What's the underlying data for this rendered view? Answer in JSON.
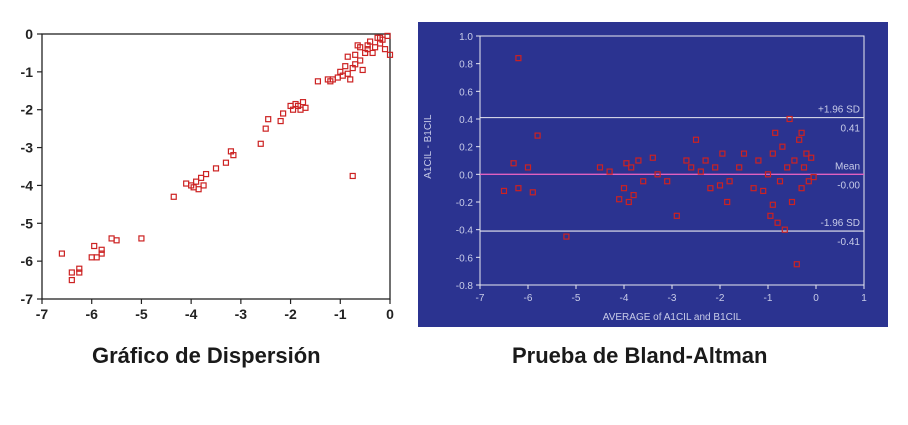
{
  "captions": {
    "left": "Gráfico de Dispersión",
    "right": "Prueba de Bland-Altman"
  },
  "colors": {
    "marker": "#cc2222",
    "ba_background": "#2b3390",
    "ba_lines": "#e8e8f0",
    "ba_text": "#c8cce8"
  },
  "chart_data": [
    {
      "type": "scatter",
      "title": "Gráfico de Dispersión",
      "xlabel": "",
      "ylabel": "",
      "xlim": [
        -7,
        0
      ],
      "ylim": [
        -7,
        0
      ],
      "x_ticks": [
        -7,
        -6,
        -5,
        -4,
        -3,
        -2,
        -1,
        0
      ],
      "y_ticks": [
        0,
        -1,
        -2,
        -3,
        -4,
        -5,
        -6,
        -7
      ],
      "grid": false,
      "points": [
        [
          -6.6,
          -5.8
        ],
        [
          -6.4,
          -6.3
        ],
        [
          -6.4,
          -6.5
        ],
        [
          -6.25,
          -6.2
        ],
        [
          -6.25,
          -6.3
        ],
        [
          -6.0,
          -5.9
        ],
        [
          -5.95,
          -5.6
        ],
        [
          -5.9,
          -5.9
        ],
        [
          -5.8,
          -5.8
        ],
        [
          -5.8,
          -5.7
        ],
        [
          -5.6,
          -5.4
        ],
        [
          -5.5,
          -5.45
        ],
        [
          -5.0,
          -5.4
        ],
        [
          -4.35,
          -4.3
        ],
        [
          -4.1,
          -3.95
        ],
        [
          -4.0,
          -4.0
        ],
        [
          -3.95,
          -4.05
        ],
        [
          -3.9,
          -3.9
        ],
        [
          -3.85,
          -4.1
        ],
        [
          -3.8,
          -3.8
        ],
        [
          -3.75,
          -4.0
        ],
        [
          -3.7,
          -3.7
        ],
        [
          -3.5,
          -3.55
        ],
        [
          -3.3,
          -3.4
        ],
        [
          -3.2,
          -3.1
        ],
        [
          -3.15,
          -3.2
        ],
        [
          -2.6,
          -2.9
        ],
        [
          -2.5,
          -2.5
        ],
        [
          -2.45,
          -2.25
        ],
        [
          -2.2,
          -2.3
        ],
        [
          -2.15,
          -2.1
        ],
        [
          -2.0,
          -1.9
        ],
        [
          -1.95,
          -2.0
        ],
        [
          -1.9,
          -1.85
        ],
        [
          -1.85,
          -1.9
        ],
        [
          -1.8,
          -2.0
        ],
        [
          -1.75,
          -1.8
        ],
        [
          -1.7,
          -1.95
        ],
        [
          -1.45,
          -1.25
        ],
        [
          -1.25,
          -1.2
        ],
        [
          -1.2,
          -1.25
        ],
        [
          -1.15,
          -1.2
        ],
        [
          -1.05,
          -1.15
        ],
        [
          -1.0,
          -1.0
        ],
        [
          -0.95,
          -1.1
        ],
        [
          -0.9,
          -0.85
        ],
        [
          -0.85,
          -0.6
        ],
        [
          -0.8,
          -1.2
        ],
        [
          -0.75,
          -0.9
        ],
        [
          -0.7,
          -0.55
        ],
        [
          -0.7,
          -0.8
        ],
        [
          -0.65,
          -0.3
        ],
        [
          -0.6,
          -0.7
        ],
        [
          -0.55,
          -0.95
        ],
        [
          -0.5,
          -0.5
        ],
        [
          -0.45,
          -0.4
        ],
        [
          -0.4,
          -0.2
        ],
        [
          -0.35,
          -0.5
        ],
        [
          -0.3,
          -0.35
        ],
        [
          -0.25,
          -0.1
        ],
        [
          -0.2,
          -0.25
        ],
        [
          -0.15,
          -0.15
        ],
        [
          -0.1,
          -0.4
        ],
        [
          -0.05,
          -0.05
        ],
        [
          0.0,
          -0.55
        ],
        [
          -0.75,
          -3.75
        ],
        [
          -0.85,
          -1.05
        ],
        [
          -0.45,
          -0.3
        ],
        [
          -0.2,
          -0.1
        ],
        [
          -0.6,
          -0.35
        ]
      ]
    },
    {
      "type": "scatter",
      "title": "Prueba de Bland-Altman",
      "xlabel": "AVERAGE of A1CIL and B1CIL",
      "ylabel": "A1CIL - B1CIL",
      "xlim": [
        -7,
        1
      ],
      "ylim": [
        -0.8,
        1.0
      ],
      "x_ticks": [
        -7,
        -6,
        -5,
        -4,
        -3,
        -2,
        -1,
        0,
        1
      ],
      "y_ticks": [
        1.0,
        0.8,
        0.6,
        0.4,
        0.2,
        0.0,
        -0.2,
        -0.4,
        -0.6,
        -0.8
      ],
      "y_tick_labels": [
        "1.0",
        "0.8",
        "0.6",
        "0.4",
        "0.2",
        "0.0",
        "-0.2",
        "-0.4",
        "-0.6",
        "-0.8"
      ],
      "grid": false,
      "reference_lines": [
        {
          "label": "+1.96 SD",
          "value_label": "0.41",
          "y": 0.41
        },
        {
          "label": "Mean",
          "value_label": "-0.00",
          "y": 0.0
        },
        {
          "label": "-1.96 SD",
          "value_label": "-0.41",
          "y": -0.41
        }
      ],
      "points": [
        [
          -6.2,
          0.84
        ],
        [
          -6.5,
          -0.12
        ],
        [
          -6.3,
          0.08
        ],
        [
          -6.2,
          -0.1
        ],
        [
          -6.0,
          0.05
        ],
        [
          -5.9,
          -0.13
        ],
        [
          -5.8,
          0.28
        ],
        [
          -5.2,
          -0.45
        ],
        [
          -4.0,
          -0.1
        ],
        [
          -3.9,
          -0.2
        ],
        [
          -3.85,
          0.05
        ],
        [
          -3.8,
          -0.15
        ],
        [
          -3.7,
          0.1
        ],
        [
          -3.6,
          -0.05
        ],
        [
          -3.4,
          0.12
        ],
        [
          -3.3,
          0.0
        ],
        [
          -3.1,
          -0.05
        ],
        [
          -2.9,
          -0.3
        ],
        [
          -2.6,
          0.05
        ],
        [
          -2.5,
          0.25
        ],
        [
          -2.3,
          0.1
        ],
        [
          -2.2,
          -0.1
        ],
        [
          -2.1,
          0.05
        ],
        [
          -2.0,
          -0.08
        ],
        [
          -1.95,
          0.15
        ],
        [
          -1.8,
          -0.05
        ],
        [
          -1.6,
          0.05
        ],
        [
          -1.5,
          0.15
        ],
        [
          -1.3,
          -0.1
        ],
        [
          -1.2,
          0.1
        ],
        [
          -1.1,
          -0.12
        ],
        [
          -1.0,
          0.0
        ],
        [
          -0.95,
          -0.3
        ],
        [
          -0.9,
          0.15
        ],
        [
          -0.85,
          0.3
        ],
        [
          -0.8,
          -0.35
        ],
        [
          -0.75,
          -0.05
        ],
        [
          -0.7,
          0.2
        ],
        [
          -0.65,
          -0.4
        ],
        [
          -0.6,
          0.05
        ],
        [
          -0.55,
          0.4
        ],
        [
          -0.5,
          -0.2
        ],
        [
          -0.45,
          0.1
        ],
        [
          -0.4,
          -0.65
        ],
        [
          -0.35,
          0.25
        ],
        [
          -0.3,
          -0.1
        ],
        [
          -0.25,
          0.05
        ],
        [
          -0.2,
          0.15
        ],
        [
          -0.15,
          -0.05
        ],
        [
          -0.1,
          0.12
        ],
        [
          -0.05,
          -0.02
        ],
        [
          -4.5,
          0.05
        ],
        [
          -4.3,
          0.02
        ],
        [
          -4.1,
          -0.18
        ],
        [
          -3.95,
          0.08
        ],
        [
          -2.7,
          0.1
        ],
        [
          -2.4,
          0.02
        ],
        [
          -1.85,
          -0.2
        ],
        [
          -0.9,
          -0.22
        ],
        [
          -0.3,
          0.3
        ]
      ]
    }
  ]
}
